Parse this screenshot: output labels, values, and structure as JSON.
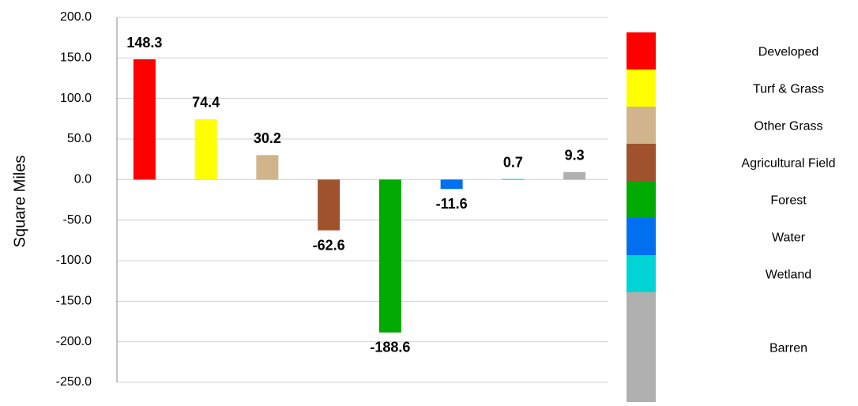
{
  "chart_data": {
    "type": "bar",
    "y_label": "Square Miles",
    "categories": [
      "Developed",
      "Turf & Grass",
      "Other Grass",
      "Agricultural Field",
      "Forest",
      "Water",
      "Wetland",
      "Barren"
    ],
    "values": [
      148.3,
      74.4,
      30.2,
      -62.6,
      -188.6,
      -11.6,
      0.7,
      9.3
    ],
    "colors": [
      "#ff0000",
      "#ffff00",
      "#d2b48c",
      "#a0522d",
      "#00aa00",
      "#0070f0",
      "#00d4d4",
      "#b0b0b0"
    ],
    "ylim": [
      -250,
      200
    ],
    "yticks": [
      {
        "value": -250,
        "label": "-250.0"
      },
      {
        "value": -200,
        "label": "-200.0"
      },
      {
        "value": -150,
        "label": "-150.0"
      },
      {
        "value": -100,
        "label": "-100.0"
      },
      {
        "value": -50,
        "label": "-50.0"
      },
      {
        "value": 0,
        "label": "0.0"
      },
      {
        "value": 50,
        "label": "50.0"
      },
      {
        "value": 100,
        "label": "100.0"
      },
      {
        "value": 150,
        "label": "150.0"
      },
      {
        "value": 200,
        "label": "200.0"
      }
    ],
    "grid": true
  }
}
